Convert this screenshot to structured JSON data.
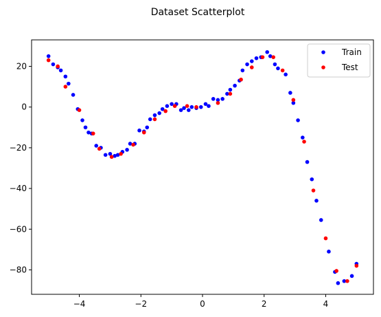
{
  "chart_data": {
    "type": "scatter",
    "title": "Dataset Scatterplot",
    "xlabel": "",
    "ylabel": "",
    "xlim": [
      -5.55,
      5.55
    ],
    "ylim": [
      -92,
      33
    ],
    "xticks": [
      -4,
      -2,
      0,
      2,
      4
    ],
    "xtick_labels": [
      "−4",
      "−2",
      "0",
      "2",
      "4"
    ],
    "yticks": [
      20,
      0,
      -20,
      -40,
      -60,
      -80
    ],
    "ytick_labels": [
      "20",
      "0",
      "−20",
      "−40",
      "−60",
      "−80"
    ],
    "grid": false,
    "legend_position": "top-right",
    "series": [
      {
        "name": "Train",
        "color": "#0000ff",
        "x": [
          -5.0,
          -4.85,
          -4.7,
          -4.6,
          -4.45,
          -4.35,
          -4.2,
          -4.05,
          -3.9,
          -3.8,
          -3.7,
          -3.6,
          -3.45,
          -3.3,
          -3.15,
          -3.0,
          -2.85,
          -2.75,
          -2.6,
          -2.45,
          -2.35,
          -2.2,
          -2.05,
          -1.9,
          -1.8,
          -1.7,
          -1.55,
          -1.4,
          -1.3,
          -1.15,
          -1.0,
          -0.85,
          -0.7,
          -0.6,
          -0.45,
          -0.35,
          -0.2,
          -0.05,
          0.1,
          0.2,
          0.35,
          0.5,
          0.65,
          0.8,
          0.9,
          1.05,
          1.2,
          1.3,
          1.45,
          1.6,
          1.75,
          1.9,
          2.1,
          2.2,
          2.35,
          2.45,
          2.7,
          2.85,
          2.95,
          3.1,
          3.25,
          3.4,
          3.55,
          3.7,
          3.85,
          4.1,
          4.3,
          4.4,
          4.6,
          4.85,
          5.0
        ],
        "y": [
          25,
          21,
          19.5,
          18,
          15,
          11.5,
          6,
          -1,
          -6.5,
          -10,
          -12.5,
          -13,
          -19,
          -20,
          -23.5,
          -23,
          -24,
          -23.5,
          -22,
          -21,
          -18,
          -18,
          -11.5,
          -12,
          -10,
          -6,
          -4,
          -3,
          -1,
          0.5,
          1.5,
          1.5,
          -1.5,
          -0.5,
          -1.5,
          0,
          -0.5,
          0,
          1.5,
          0.5,
          4,
          3.5,
          4,
          6.5,
          8.5,
          10.5,
          13,
          18,
          21,
          22.5,
          24,
          24.5,
          27,
          25,
          21,
          19,
          16,
          7,
          2,
          -6.5,
          -15,
          -27,
          -35.5,
          -46,
          -55.5,
          -71,
          -81,
          -86.5,
          -85.5,
          -83,
          -77
        ]
      },
      {
        "name": "Test",
        "color": "#ff0000",
        "x": [
          -5.0,
          -4.7,
          -4.45,
          -4.0,
          -3.55,
          -3.35,
          -2.95,
          -2.65,
          -2.25,
          -1.9,
          -1.55,
          -1.2,
          -0.9,
          -0.5,
          -0.2,
          0.5,
          0.9,
          1.25,
          1.6,
          1.95,
          2.3,
          2.6,
          2.95,
          3.3,
          3.6,
          4.0,
          4.35,
          4.7,
          5.0
        ],
        "y": [
          23,
          20,
          10,
          -1.5,
          -13,
          -20.5,
          -24.5,
          -23,
          -18.5,
          -12.5,
          -6,
          -2,
          0.5,
          0.5,
          0,
          2,
          6.5,
          13.5,
          19.5,
          24.5,
          24.5,
          18,
          3.5,
          -17,
          -41,
          -64.5,
          -80.5,
          -85.5,
          -78
        ]
      }
    ]
  }
}
